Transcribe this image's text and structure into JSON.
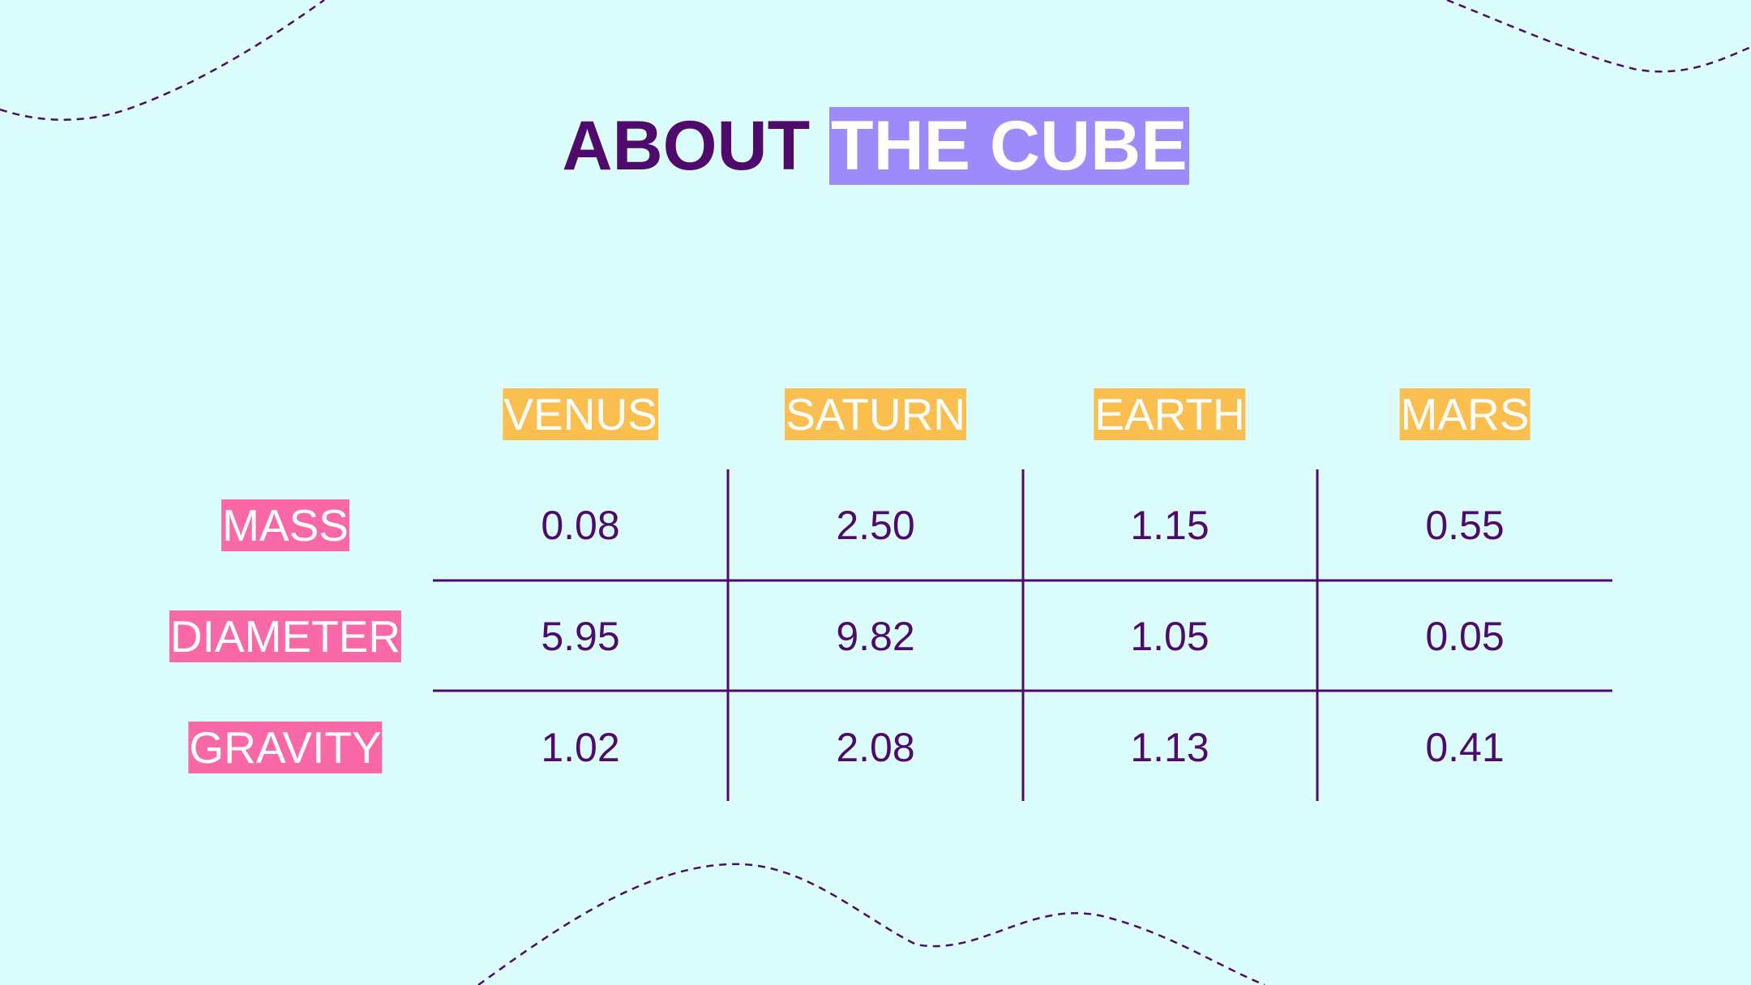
{
  "title": {
    "part1": "ABOUT",
    "part2": "THE CUBE"
  },
  "table": {
    "columns": [
      "VENUS",
      "SATURN",
      "EARTH",
      "MARS"
    ],
    "rows": [
      {
        "label": "MASS",
        "values": [
          "0.08",
          "2.50",
          "1.15",
          "0.55"
        ]
      },
      {
        "label": "DIAMETER",
        "values": [
          "5.95",
          "9.82",
          "1.05",
          "0.05"
        ]
      },
      {
        "label": "GRAVITY",
        "values": [
          "1.02",
          "2.08",
          "1.13",
          "0.41"
        ]
      }
    ]
  },
  "colors": {
    "background": "#dcfdfd",
    "text": "#4f0a6e",
    "title_highlight": "#9d8bfb",
    "column_header": "#fbbf4f",
    "row_header": "#f969a8"
  }
}
